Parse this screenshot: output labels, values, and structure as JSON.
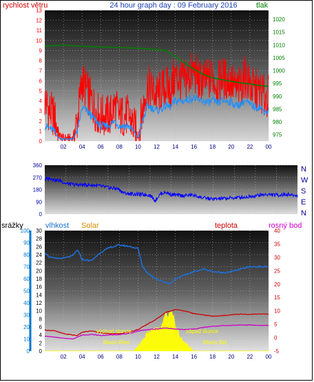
{
  "header": {
    "title": "24 hour graph day : 09 February 2016",
    "left_label": "rychlost větru",
    "right_label": "tlak"
  },
  "wind_dir_labels": [
    "N",
    "W",
    "S",
    "E",
    "N"
  ],
  "lower_header": {
    "rain": "srážky",
    "humidity": "vlhkost",
    "solar": "Solar",
    "temp": "teplota",
    "dew": "rosný bod"
  },
  "annotations": {
    "sunrise": "východ slunce",
    "sunset": "západ slunce",
    "moonrise": "Moon Rise",
    "moonset": "Moon Set"
  },
  "colors": {
    "wind": "#ff0000",
    "wind_avg": "#1e90ff",
    "pressure": "#008000",
    "direction": "#0000ff",
    "humidity": "#1e6fd9",
    "temperature": "#cc0000",
    "dewpoint": "#cc00cc",
    "solar": "#ffff00",
    "rain_axis": "#0077cc",
    "temp_axis": "#cc0000"
  },
  "chart_data": [
    {
      "type": "line",
      "title": "24 hour graph day : 09 February 2016",
      "xlabel": "",
      "ylabel": "rychlost větru",
      "x_ticks": [
        "02",
        "04",
        "06",
        "08",
        "10",
        "12",
        "14",
        "16",
        "18",
        "20",
        "22",
        "00"
      ],
      "x_range": [
        0,
        24
      ],
      "y_ticks": [
        0,
        1,
        2,
        3,
        4,
        5,
        6,
        7,
        8,
        9,
        10,
        11,
        12,
        13
      ],
      "ylim": [
        0,
        13
      ],
      "y2_ticks": [
        975,
        980,
        985,
        990,
        995,
        1000,
        1005,
        1010,
        1015,
        1020
      ],
      "y2lim": [
        972.5,
        1023.5
      ],
      "series": [
        {
          "name": "rychlost větru",
          "x": [
            0,
            0.5,
            1,
            1.5,
            2,
            2.5,
            3,
            3.5,
            4,
            4.5,
            5,
            5.5,
            6,
            6.5,
            7,
            7.5,
            8,
            8.5,
            9,
            9.5,
            10,
            10.5,
            11,
            11.5,
            12,
            12.5,
            13,
            13.5,
            14,
            14.5,
            15,
            15.5,
            16,
            16.5,
            17,
            17.5,
            18,
            18.5,
            19,
            19.5,
            20,
            20.5,
            21,
            21.5,
            22,
            22.5,
            23,
            23.5,
            24
          ],
          "values": [
            4,
            3,
            2.5,
            0.6,
            0.3,
            0.3,
            0.3,
            2,
            6,
            5,
            4,
            3,
            2.5,
            2.5,
            2.5,
            3.5,
            2.5,
            2.5,
            2.5,
            1.5,
            0.5,
            3,
            5.5,
            5,
            4.5,
            5,
            5.5,
            5,
            6.5,
            6,
            6,
            6.5,
            7,
            6,
            6,
            6,
            6.5,
            5.5,
            6.5,
            6,
            6,
            5,
            5.5,
            6.5,
            5.5,
            5,
            5,
            4.5,
            4.5
          ]
        },
        {
          "name": "",
          "x": [
            0,
            0.5,
            1,
            1.5,
            2,
            2.5,
            3,
            3.5,
            4,
            4.5,
            5,
            5.5,
            6,
            6.5,
            7,
            7.5,
            8,
            8.5,
            9,
            9.5,
            10,
            10.5,
            11,
            11.5,
            12,
            12.5,
            13,
            13.5,
            14,
            14.5,
            15,
            15.5,
            16,
            16.5,
            17,
            17.5,
            18,
            18.5,
            19,
            19.5,
            20,
            20.5,
            21,
            21.5,
            22,
            22.5,
            23,
            23.5,
            24
          ],
          "values": [
            1.5,
            1.3,
            1,
            0.3,
            0.2,
            0.2,
            0.2,
            1,
            3.3,
            3,
            2.5,
            2,
            1.5,
            1.5,
            1.6,
            2,
            1.5,
            1.5,
            1.5,
            1,
            0.3,
            2,
            3.5,
            3.3,
            3,
            3.2,
            3.5,
            3.4,
            4,
            4,
            4,
            4.2,
            4.3,
            4,
            4,
            3.8,
            4,
            3.8,
            4,
            4,
            3.9,
            3.5,
            3.7,
            4,
            3.6,
            3.4,
            3.4,
            3,
            3
          ]
        },
        {
          "name": "tlak",
          "axis": "y2",
          "x": [
            0,
            2,
            4,
            6,
            8,
            10,
            12,
            13,
            14,
            15,
            16,
            17,
            18,
            19,
            20,
            21,
            22,
            23,
            24
          ],
          "values": [
            1009.5,
            1010,
            1009.5,
            1009.2,
            1009,
            1008.7,
            1008.2,
            1007.8,
            1005.5,
            1003,
            1000.5,
            998.5,
            997.2,
            996.5,
            995.8,
            995.2,
            994.8,
            994.2,
            993.8
          ]
        }
      ]
    },
    {
      "type": "line",
      "ylabel": "",
      "y_ticks": [
        0,
        90,
        180,
        270,
        360
      ],
      "ylim": [
        0,
        360
      ],
      "x_range": [
        0,
        24
      ],
      "series": [
        {
          "name": "",
          "x": [
            0,
            0.5,
            1,
            1.5,
            2,
            3,
            4,
            5,
            6,
            7,
            7.5,
            8,
            9,
            10,
            10.5,
            11,
            11.5,
            12,
            13,
            14,
            15,
            16,
            17,
            18,
            19,
            20,
            21,
            22,
            23,
            24
          ],
          "values": [
            255,
            265,
            250,
            245,
            225,
            215,
            215,
            210,
            195,
            185,
            155,
            150,
            145,
            140,
            100,
            150,
            160,
            145,
            135,
            140,
            120,
            110,
            115,
            120,
            125,
            135,
            145,
            140,
            145,
            135
          ]
        }
      ]
    },
    {
      "type": "line",
      "y_ticks": [
        0,
        10,
        20,
        30,
        40,
        50,
        60,
        70,
        80,
        90,
        100
      ],
      "ylim": [
        0,
        100
      ],
      "y_solar_ticks": [
        0,
        2,
        4,
        6,
        8,
        10,
        12,
        14,
        16,
        18,
        20,
        22,
        24,
        26,
        28,
        30
      ],
      "y_temp_ticks": [
        -5,
        0,
        5,
        10,
        15,
        20,
        25,
        30,
        35,
        40
      ],
      "y_temp_lim": [
        -5,
        40
      ],
      "x_range": [
        0,
        24
      ],
      "series": [
        {
          "name": "vlhkost",
          "x": [
            0,
            0.5,
            1,
            1.5,
            2,
            2.5,
            3,
            3.5,
            4,
            5,
            6,
            7,
            8,
            9,
            10,
            10.5,
            11,
            11.5,
            12,
            12.5,
            13,
            13.5,
            14,
            15,
            16,
            17,
            18,
            19,
            20,
            21,
            22,
            23,
            24
          ],
          "values": [
            82,
            78,
            77,
            77,
            77,
            78,
            79,
            84,
            76,
            75,
            82,
            86,
            88,
            87,
            85,
            70,
            65,
            62,
            60,
            58,
            57,
            56,
            60,
            63,
            66,
            68,
            66,
            65,
            66,
            68,
            70,
            70,
            70
          ]
        },
        {
          "name": "teplota",
          "x": [
            0,
            1,
            2,
            3,
            3.5,
            4,
            5,
            6,
            7,
            8,
            9,
            10,
            11,
            12,
            13,
            14,
            15,
            16,
            17,
            18,
            19,
            20,
            21,
            22,
            23,
            24
          ],
          "values": [
            2.8,
            2.6,
            1.5,
            1.0,
            0.8,
            2.0,
            2.5,
            1.8,
            1.5,
            1.5,
            2.0,
            3.0,
            5.0,
            7.0,
            9.5,
            10.5,
            10.0,
            9.0,
            8.5,
            8.0,
            8.2,
            8.6,
            8.8,
            8.7,
            8.8,
            8.8
          ]
        },
        {
          "name": "rosný bod",
          "x": [
            0,
            1,
            2,
            3,
            3.5,
            4,
            5,
            6,
            7,
            8,
            9,
            10,
            11,
            12,
            13,
            14,
            15,
            16,
            17,
            18,
            19,
            20,
            21,
            22,
            23,
            24
          ],
          "values": [
            0.6,
            0.2,
            -0.2,
            -0.5,
            0.2,
            1.0,
            1.2,
            0.8,
            1.0,
            1.2,
            1.5,
            2.5,
            3.0,
            3.2,
            3.6,
            3.2,
            3.0,
            3.2,
            3.8,
            4.2,
            4.5,
            4.6,
            4.7,
            4.7,
            4.6,
            4.6
          ]
        },
        {
          "name": "Solar",
          "x": [
            0,
            9.5,
            10,
            10.3,
            10.6,
            11,
            11.5,
            12,
            12.5,
            12.8,
            13,
            13.2,
            13.5,
            13.8,
            14,
            14.3,
            14.6,
            15,
            15.5,
            16,
            24
          ],
          "values": [
            0,
            0,
            1,
            2,
            3,
            4.5,
            5,
            5.5,
            6,
            8,
            9.5,
            8.5,
            10,
            9,
            6,
            5,
            3,
            2,
            1,
            0,
            0
          ]
        }
      ]
    }
  ]
}
